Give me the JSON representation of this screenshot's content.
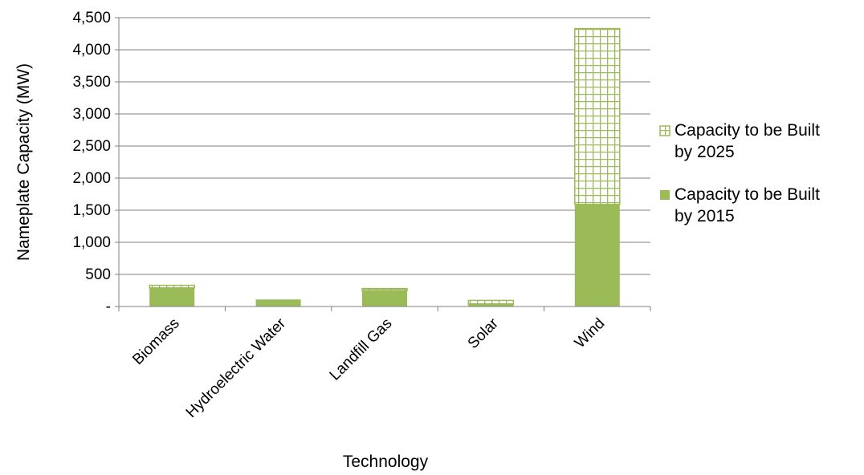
{
  "chart_data": {
    "type": "bar",
    "stacked": true,
    "title": "",
    "xlabel": "Technology",
    "ylabel": "Nameplate Capacity (MW)",
    "categories": [
      "Biomass",
      "Hydroelectric Water",
      "Landfill Gas",
      "Solar",
      "Wind"
    ],
    "series": [
      {
        "name": "Capacity to be Built by 2015",
        "values": [
          290,
          110,
          245,
          30,
          1590
        ],
        "pattern": "solid",
        "color": "#9bbb59"
      },
      {
        "name": "Capacity to be Built by 2025",
        "values": [
          40,
          0,
          35,
          65,
          2740
        ],
        "pattern": "grid",
        "color": "#9bbb59"
      }
    ],
    "ylim": [
      0,
      4500
    ],
    "yticks": [
      0,
      500,
      1000,
      1500,
      2000,
      2500,
      3000,
      3500,
      4000,
      4500
    ],
    "ytick_labels": [
      "-",
      "500",
      "1,000",
      "1,500",
      "2,000",
      "2,500",
      "3,000",
      "3,500",
      "4,000",
      "4,500"
    ],
    "grid": true,
    "legend_position": "right"
  }
}
